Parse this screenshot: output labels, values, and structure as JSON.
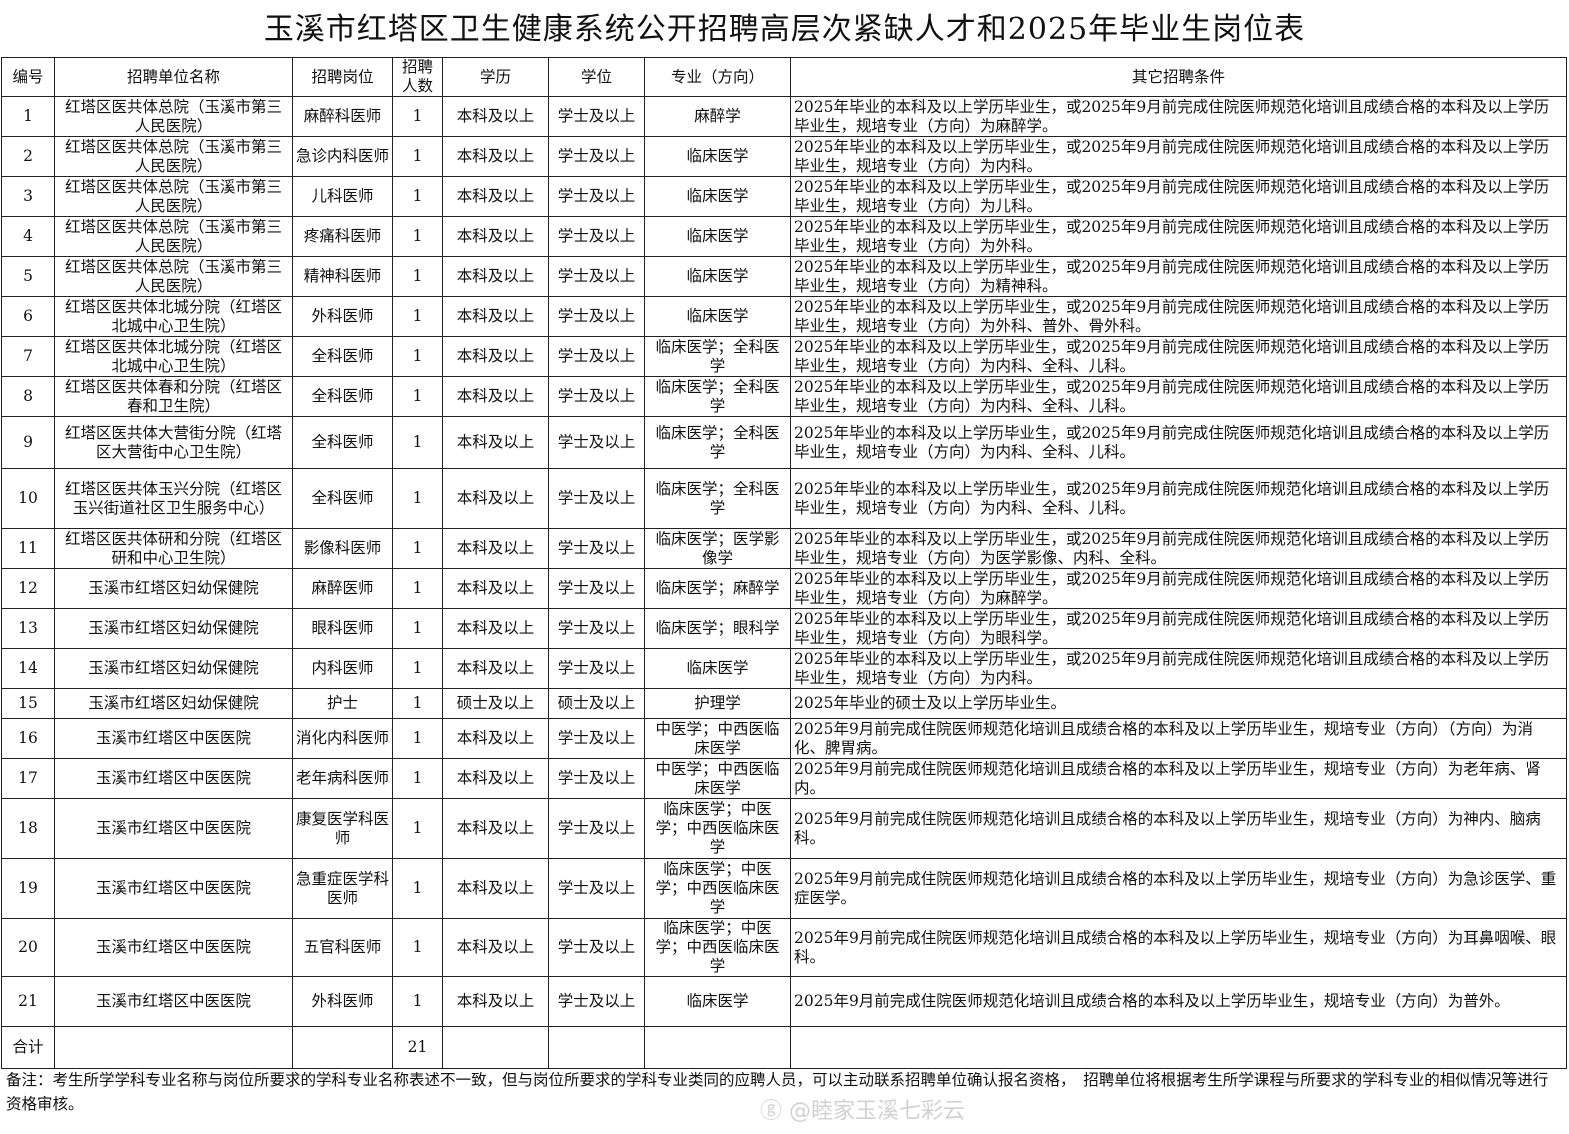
{
  "title": "玉溪市红塔区卫生健康系统公开招聘高层次紧缺人才和2025年毕业生岗位表",
  "headers": [
    "编号",
    "招聘单位名称",
    "招聘岗位",
    "招聘人数",
    "学历",
    "学位",
    "专业（方向）",
    "其它招聘条件"
  ],
  "rows": [
    [
      "1",
      "红塔区医共体总院（玉溪市第三人民医院）",
      "麻醉科医师",
      "1",
      "本科及以上",
      "学士及以上",
      "麻醉学",
      "2025年毕业的本科及以上学历毕业生，或2025年9月前完成住院医师规范化培训且成绩合格的本科及以上学历毕业生，规培专业（方向）为麻醉学。"
    ],
    [
      "2",
      "红塔区医共体总院（玉溪市第三人民医院）",
      "急诊内科医师",
      "1",
      "本科及以上",
      "学士及以上",
      "临床医学",
      "2025年毕业的本科及以上学历毕业生，或2025年9月前完成住院医师规范化培训且成绩合格的本科及以上学历毕业生，规培专业（方向）为内科。"
    ],
    [
      "3",
      "红塔区医共体总院（玉溪市第三人民医院）",
      "儿科医师",
      "1",
      "本科及以上",
      "学士及以上",
      "临床医学",
      "2025年毕业的本科及以上学历毕业生，或2025年9月前完成住院医师规范化培训且成绩合格的本科及以上学历毕业生，规培专业（方向）为儿科。"
    ],
    [
      "4",
      "红塔区医共体总院（玉溪市第三人民医院）",
      "疼痛科医师",
      "1",
      "本科及以上",
      "学士及以上",
      "临床医学",
      "2025年毕业的本科及以上学历毕业生，或2025年9月前完成住院医师规范化培训且成绩合格的本科及以上学历毕业生，规培专业（方向）为外科。"
    ],
    [
      "5",
      "红塔区医共体总院（玉溪市第三人民医院）",
      "精神科医师",
      "1",
      "本科及以上",
      "学士及以上",
      "临床医学",
      "2025年毕业的本科及以上学历毕业生，或2025年9月前完成住院医师规范化培训且成绩合格的本科及以上学历毕业生，规培专业（方向）为精神科。"
    ],
    [
      "6",
      "红塔区医共体北城分院（红塔区北城中心卫生院）",
      "外科医师",
      "1",
      "本科及以上",
      "学士及以上",
      "临床医学",
      "2025年毕业的本科及以上学历毕业生，或2025年9月前完成住院医师规范化培训且成绩合格的本科及以上学历毕业生，规培专业（方向）为外科、普外、骨外科。"
    ],
    [
      "7",
      "红塔区医共体北城分院（红塔区北城中心卫生院）",
      "全科医师",
      "1",
      "本科及以上",
      "学士及以上",
      "临床医学；全科医学",
      "2025年毕业的本科及以上学历毕业生，或2025年9月前完成住院医师规范化培训且成绩合格的本科及以上学历毕业生，规培专业（方向）为内科、全科、儿科。"
    ],
    [
      "8",
      "红塔区医共体春和分院（红塔区春和卫生院）",
      "全科医师",
      "1",
      "本科及以上",
      "学士及以上",
      "临床医学；全科医学",
      "2025年毕业的本科及以上学历毕业生，或2025年9月前完成住院医师规范化培训且成绩合格的本科及以上学历毕业生，规培专业（方向）为内科、全科、儿科。"
    ],
    [
      "9",
      "红塔区医共体大营街分院（红塔区大营街中心卫生院）",
      "全科医师",
      "1",
      "本科及以上",
      "学士及以上",
      "临床医学；全科医学",
      "2025年毕业的本科及以上学历毕业生，或2025年9月前完成住院医师规范化培训且成绩合格的本科及以上学历毕业生，规培专业（方向）为内科、全科、儿科。"
    ],
    [
      "10",
      "红塔区医共体玉兴分院（红塔区玉兴街道社区卫生服务中心）",
      "全科医师",
      "1",
      "本科及以上",
      "学士及以上",
      "临床医学；全科医学",
      "2025年毕业的本科及以上学历毕业生，或2025年9月前完成住院医师规范化培训且成绩合格的本科及以上学历毕业生，规培专业（方向）为内科、全科、儿科。"
    ],
    [
      "11",
      "红塔区医共体研和分院（红塔区研和中心卫生院）",
      "影像科医师",
      "1",
      "本科及以上",
      "学士及以上",
      "临床医学；医学影像学",
      "2025年毕业的本科及以上学历毕业生，或2025年9月前完成住院医师规范化培训且成绩合格的本科及以上学历毕业生，规培专业（方向）为医学影像、内科、全科。"
    ],
    [
      "12",
      "玉溪市红塔区妇幼保健院",
      "麻醉医师",
      "1",
      "本科及以上",
      "学士及以上",
      "临床医学；麻醉学",
      "2025年毕业的本科及以上学历毕业生，或2025年9月前完成住院医师规范化培训且成绩合格的本科及以上学历毕业生，规培专业（方向）为麻醉学。"
    ],
    [
      "13",
      "玉溪市红塔区妇幼保健院",
      "眼科医师",
      "1",
      "本科及以上",
      "学士及以上",
      "临床医学；眼科学",
      "2025年毕业的本科及以上学历毕业生，或2025年9月前完成住院医师规范化培训且成绩合格的本科及以上学历毕业生，规培专业（方向）为眼科学。"
    ],
    [
      "14",
      "玉溪市红塔区妇幼保健院",
      "内科医师",
      "1",
      "本科及以上",
      "学士及以上",
      "临床医学",
      "2025年毕业的本科及以上学历毕业生，或2025年9月前完成住院医师规范化培训且成绩合格的本科及以上学历毕业生，规培专业（方向）为内科。"
    ],
    [
      "15",
      "玉溪市红塔区妇幼保健院",
      "护士",
      "1",
      "硕士及以上",
      "硕士及以上",
      "护理学",
      "2025年毕业的硕士及以上学历毕业生。"
    ],
    [
      "16",
      "玉溪市红塔区中医医院",
      "消化内科医师",
      "1",
      "本科及以上",
      "学士及以上",
      "中医学；中西医临床医学",
      "2025年9月前完成住院医师规范化培训且成绩合格的本科及以上学历毕业生，规培专业（方向）（方向）为消化、脾胃病。"
    ],
    [
      "17",
      "玉溪市红塔区中医医院",
      "老年病科医师",
      "1",
      "本科及以上",
      "学士及以上",
      "中医学；中西医临床医学",
      "2025年9月前完成住院医师规范化培训且成绩合格的本科及以上学历毕业生，规培专业（方向）为老年病、肾内。"
    ],
    [
      "18",
      "玉溪市红塔区中医医院",
      "康复医学科医师",
      "1",
      "本科及以上",
      "学士及以上",
      "临床医学；中医学；中西医临床医学",
      "2025年9月前完成住院医师规范化培训且成绩合格的本科及以上学历毕业生，规培专业（方向）为神内、脑病科。"
    ],
    [
      "19",
      "玉溪市红塔区中医医院",
      "急重症医学科医师",
      "1",
      "本科及以上",
      "学士及以上",
      "临床医学；中医学；中西医临床医学",
      "2025年9月前完成住院医师规范化培训且成绩合格的本科及以上学历毕业生，规培专业（方向）为急诊医学、重症医学。"
    ],
    [
      "20",
      "玉溪市红塔区中医医院",
      "五官科医师",
      "1",
      "本科及以上",
      "学士及以上",
      "临床医学；中医学；中西医临床医学",
      "2025年9月前完成住院医师规范化培训且成绩合格的本科及以上学历毕业生，规培专业（方向）为耳鼻咽喉、眼科。"
    ],
    [
      "21",
      "玉溪市红塔区中医医院",
      "外科医师",
      "1",
      "本科及以上",
      "学士及以上",
      "临床医学",
      "2025年9月前完成住院医师规范化培训且成绩合格的本科及以上学历毕业生，规培专业（方向）为普外。"
    ]
  ],
  "total": {
    "label": "合计",
    "count": "21"
  },
  "note": "备注：考生所学学科专业名称与岗位所要求的学科专业名称表述不一致，但与岗位所要求的学科专业类同的应聘人员，可以主动联系招聘单位确认报名资格，　招聘单位将根据考生所学课程与所要求的学科专业的相似情况等进行资格审核。",
  "watermark": "@睦家玉溪七彩云"
}
